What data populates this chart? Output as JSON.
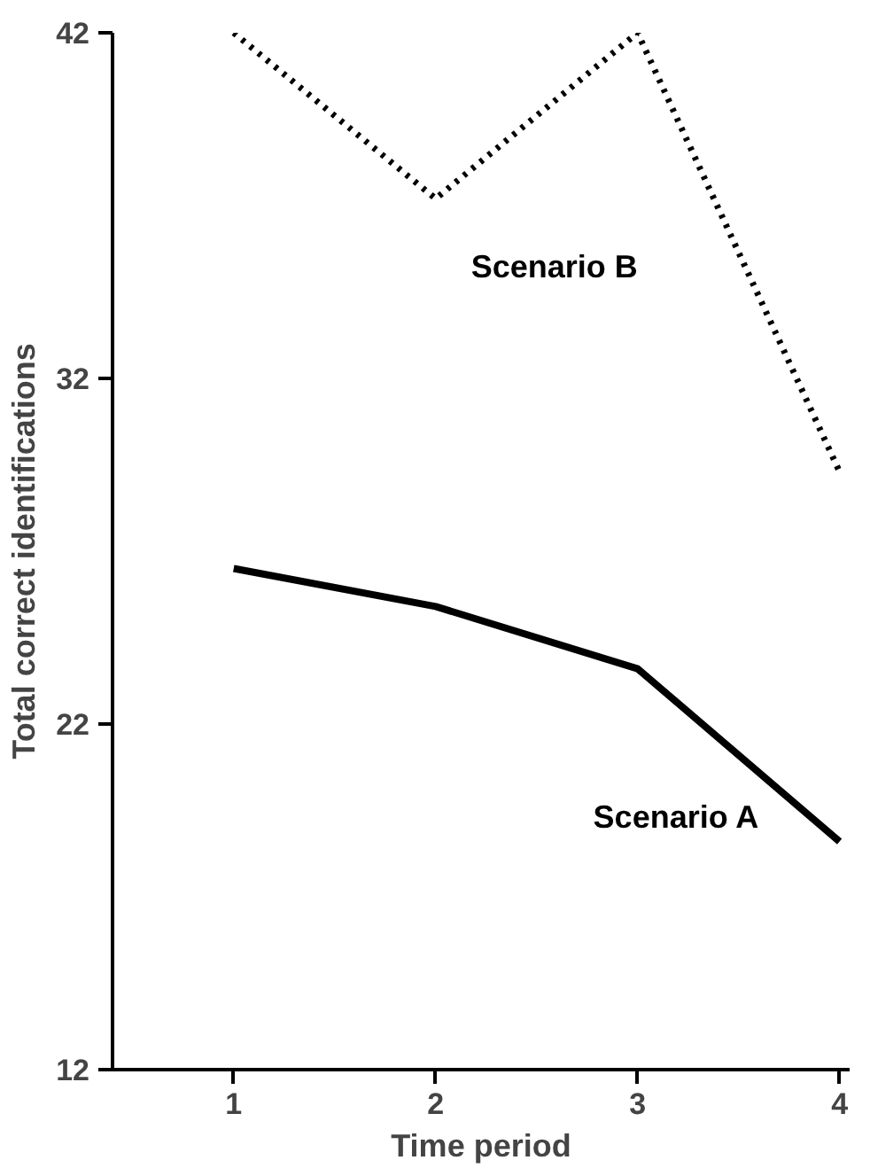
{
  "chart_data": {
    "type": "line",
    "xlabel": "Time period",
    "ylabel": "Total correct identifications",
    "x": [
      1,
      2,
      3,
      4
    ],
    "xlim": [
      0.4,
      4.05
    ],
    "xticks": [
      1,
      2,
      3,
      4
    ],
    "ylim": [
      12,
      42
    ],
    "yticks": [
      12,
      22,
      32,
      42
    ],
    "grid": false,
    "marker": "none",
    "series": [
      {
        "name": "Scenario A",
        "color": "#000000",
        "line_style": "solid",
        "values": [
          26.5,
          25.4,
          23.6,
          18.6
        ]
      },
      {
        "name": "Scenario B",
        "color": "#000000",
        "line_style": "dotted",
        "values": [
          42,
          37.2,
          42,
          29.3
        ]
      }
    ]
  }
}
